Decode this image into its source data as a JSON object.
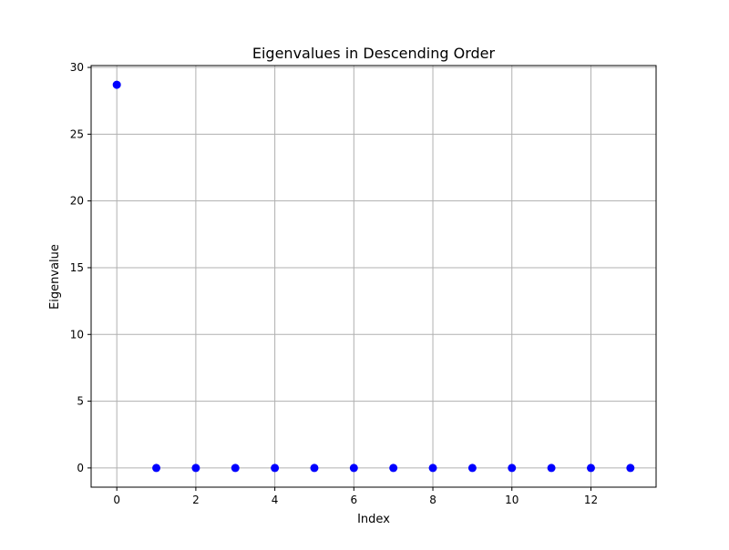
{
  "chart_data": {
    "type": "scatter",
    "title": "Eigenvalues in Descending Order",
    "xlabel": "Index",
    "ylabel": "Eigenvalue",
    "x": [
      0,
      1,
      2,
      3,
      4,
      5,
      6,
      7,
      8,
      9,
      10,
      11,
      12,
      13
    ],
    "y": [
      28.7,
      0,
      0,
      0,
      0,
      0,
      0,
      0,
      0,
      0,
      0,
      0,
      0,
      0
    ],
    "xlim": [
      -0.65,
      13.65
    ],
    "ylim": [
      -1.44,
      30.14
    ],
    "xticks": [
      0,
      2,
      4,
      6,
      8,
      10,
      12
    ],
    "xtick_labels": [
      "0",
      "2",
      "4",
      "6",
      "8",
      "10",
      "12"
    ],
    "yticks": [
      0,
      5,
      10,
      15,
      20,
      25,
      30
    ],
    "ytick_labels": [
      "0",
      "5",
      "10",
      "15",
      "20",
      "25",
      "30"
    ],
    "grid": true,
    "marker_color": "#0000ff",
    "grid_color": "#b0b0b0"
  }
}
